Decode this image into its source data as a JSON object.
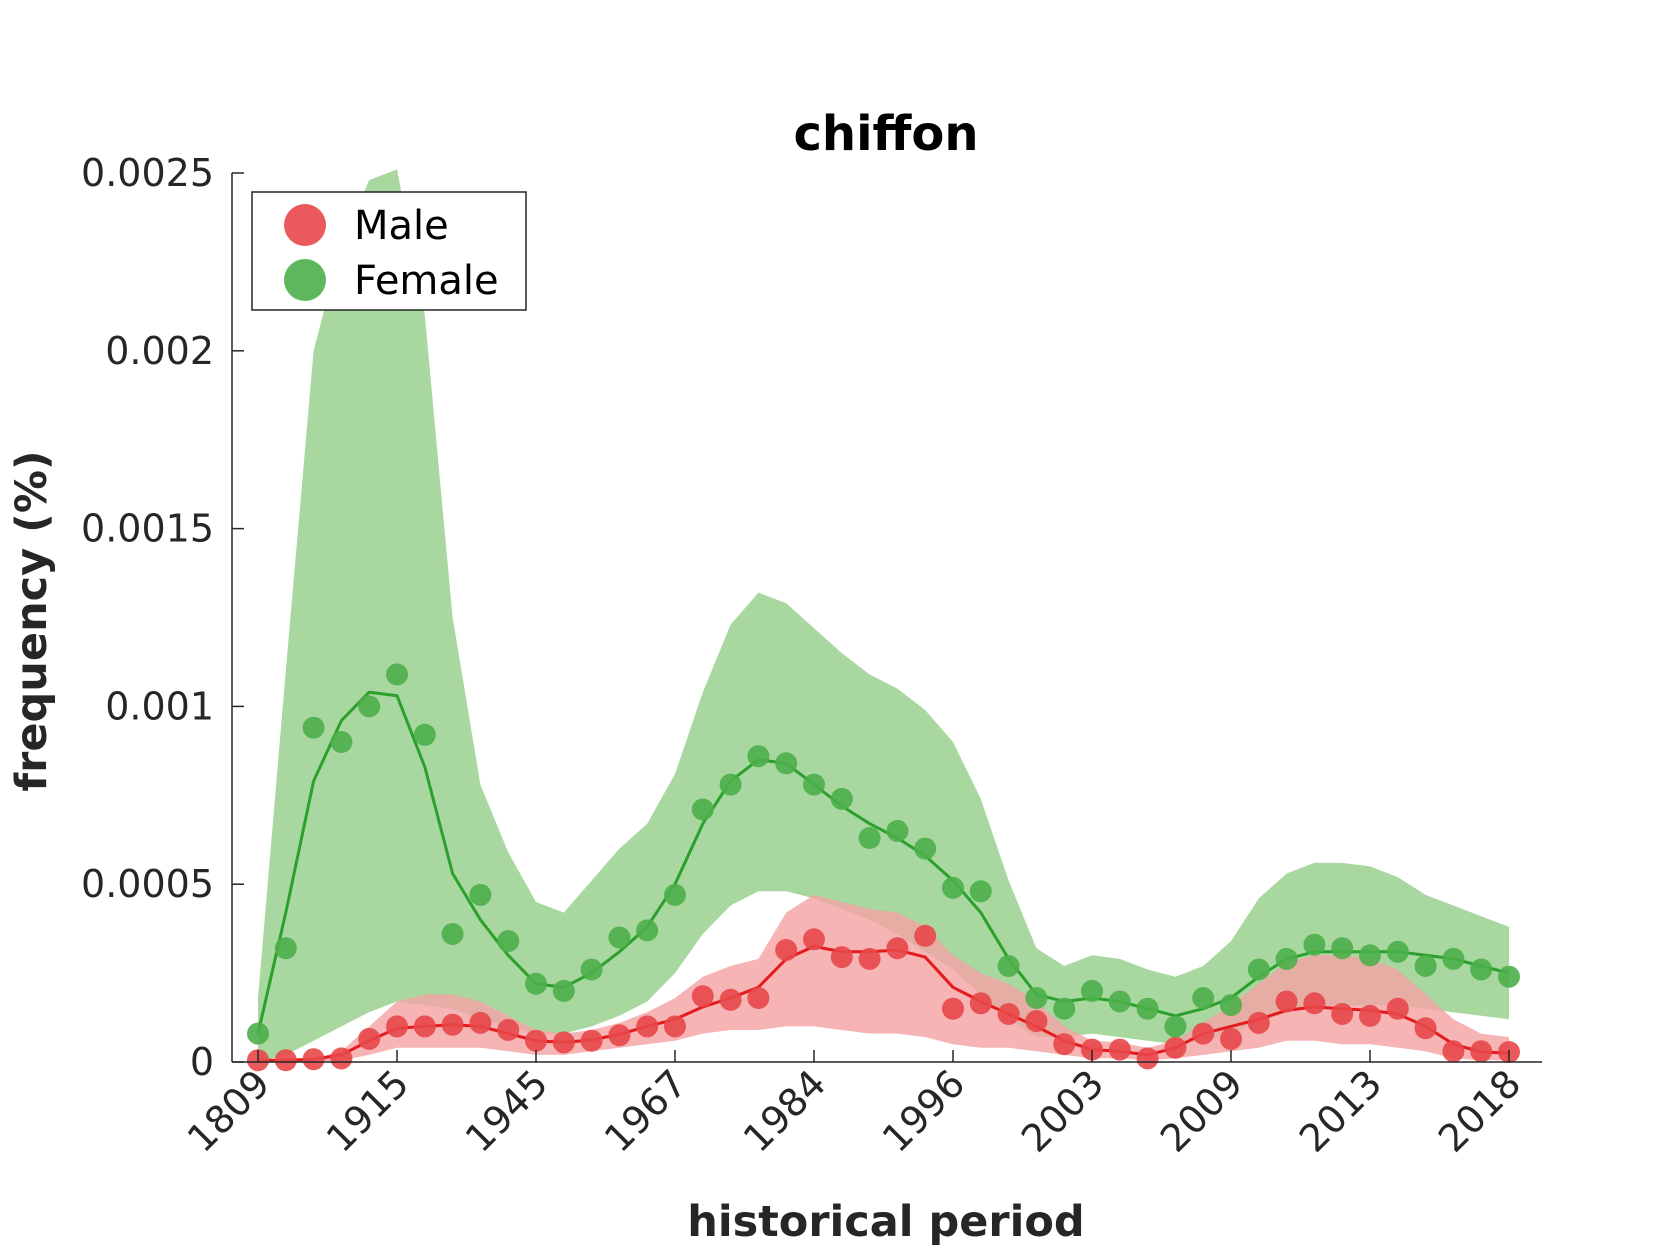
{
  "chart_data": {
    "type": "line",
    "title": "chiffon",
    "xlabel": "historical period",
    "ylabel": "frequency (%)",
    "xtick_labels": [
      "1809",
      "1915",
      "1945",
      "1967",
      "1984",
      "1996",
      "2003",
      "2009",
      "2013",
      "2018"
    ],
    "xtick_index": [
      0,
      5,
      10,
      15,
      20,
      25,
      30,
      35,
      40,
      45
    ],
    "ytick_labels": [
      "0",
      "0.0005",
      "0.001",
      "0.0015",
      "0.002",
      "0.0025"
    ],
    "yticks": [
      0,
      0.0005,
      0.001,
      0.0015,
      0.002,
      0.0025
    ],
    "ylim": [
      0,
      0.0025
    ],
    "grid": false,
    "legend_position": "top-left",
    "series": [
      {
        "name": "Male",
        "color": "#e41a1c",
        "marker_color": "#e8474a",
        "band_color": "#f4a4a5",
        "points": [
          5e-06,
          5e-06,
          8e-06,
          1e-05,
          6.5e-05,
          0.0001,
          0.0001,
          0.000105,
          0.00011,
          9e-05,
          6e-05,
          5.5e-05,
          6e-05,
          7.5e-05,
          0.0001,
          0.0001,
          0.000185,
          0.000175,
          0.00018,
          0.000315,
          0.000345,
          0.000295,
          0.00029,
          0.00032,
          0.000355,
          0.00015,
          0.000165,
          0.000135,
          0.000115,
          5e-05,
          3.5e-05,
          3.5e-05,
          1e-05,
          4e-05,
          8e-05,
          6.5e-05,
          0.00011,
          0.00017,
          0.000165,
          0.000135,
          0.00013,
          0.00015,
          9.5e-05,
          3e-05,
          3e-05,
          2.8e-05
        ],
        "smooth": [
          5e-06,
          5e-06,
          8e-06,
          2e-05,
          6e-05,
          9.5e-05,
          0.0001,
          0.000105,
          0.0001,
          8e-05,
          6e-05,
          5.5e-05,
          6.2e-05,
          7.8e-05,
          0.0001,
          0.00012,
          0.000155,
          0.00018,
          0.00021,
          0.00029,
          0.000325,
          0.00031,
          0.00031,
          0.000315,
          0.000295,
          0.00021,
          0.00017,
          0.000135,
          0.0001,
          6e-05,
          3.5e-05,
          3e-05,
          2e-05,
          4e-05,
          8e-05,
          0.0001,
          0.00012,
          0.000145,
          0.000155,
          0.00015,
          0.000145,
          0.000135,
          0.0001,
          5e-05,
          2.8e-05,
          2.5e-05
        ],
        "band_upper": [
          5e-06,
          5e-06,
          1e-05,
          3e-05,
          0.0001,
          0.00017,
          0.00019,
          0.00019,
          0.00017,
          0.00013,
          9e-05,
          8e-05,
          9e-05,
          0.00011,
          0.00014,
          0.00018,
          0.00024,
          0.00027,
          0.00029,
          0.00042,
          0.00047,
          0.00045,
          0.00043,
          0.00042,
          0.00038,
          0.0003,
          0.00025,
          0.00022,
          0.00017,
          0.0001,
          6e-05,
          5.5e-05,
          4e-05,
          6e-05,
          0.00011,
          0.00016,
          0.00022,
          0.00028,
          0.0003,
          0.0003,
          0.00029,
          0.00026,
          0.00019,
          0.00012,
          8e-05,
          7e-05
        ],
        "band_lower": [
          0,
          0,
          0,
          5e-06,
          2e-05,
          4e-05,
          4e-05,
          4e-05,
          4e-05,
          3e-05,
          2e-05,
          2e-05,
          3e-05,
          4e-05,
          5e-05,
          6e-05,
          8e-05,
          9e-05,
          9e-05,
          0.0001,
          0.0001,
          9e-05,
          8e-05,
          8e-05,
          7e-05,
          5e-05,
          4e-05,
          4e-05,
          3e-05,
          2e-05,
          1e-05,
          1e-05,
          5e-06,
          1e-05,
          2e-05,
          3e-05,
          4e-05,
          6e-05,
          6e-05,
          5e-05,
          5e-05,
          4e-05,
          3e-05,
          1e-05,
          5e-06,
          5e-06
        ]
      },
      {
        "name": "Female",
        "color": "#2ca02c",
        "marker_color": "#4daf4a",
        "band_color": "#a8d8a0",
        "points": [
          8e-05,
          0.00032,
          0.00094,
          0.0009,
          0.001,
          0.00109,
          0.00092,
          0.00036,
          0.00047,
          0.00034,
          0.00022,
          0.0002,
          0.00026,
          0.00035,
          0.00037,
          0.00047,
          0.00071,
          0.00078,
          0.00086,
          0.00084,
          0.00078,
          0.00074,
          0.00063,
          0.00065,
          0.0006,
          0.00049,
          0.00048,
          0.00027,
          0.00018,
          0.00015,
          0.0002,
          0.00017,
          0.00015,
          0.0001,
          0.00018,
          0.00016,
          0.00026,
          0.00029,
          0.00033,
          0.00032,
          0.0003,
          0.00031,
          0.00027,
          0.00029,
          0.00026,
          0.00024
        ],
        "smooth": [
          8e-05,
          0.00042,
          0.00079,
          0.00096,
          0.00104,
          0.00103,
          0.00083,
          0.00053,
          0.0004,
          0.0003,
          0.00022,
          0.00021,
          0.00025,
          0.00031,
          0.00038,
          0.0005,
          0.00067,
          0.00079,
          0.00085,
          0.00084,
          0.00078,
          0.00072,
          0.00067,
          0.00063,
          0.00058,
          0.00051,
          0.00042,
          0.00029,
          0.00019,
          0.00017,
          0.00018,
          0.00017,
          0.00015,
          0.00013,
          0.00015,
          0.00018,
          0.00024,
          0.00029,
          0.00031,
          0.00031,
          0.00031,
          0.00031,
          0.0003,
          0.00029,
          0.00027,
          0.00025
        ],
        "band_upper": [
          0.00018,
          0.0011,
          0.002,
          0.0023,
          0.00248,
          0.00251,
          0.0021,
          0.00125,
          0.00078,
          0.00059,
          0.00045,
          0.00042,
          0.00051,
          0.0006,
          0.00067,
          0.00081,
          0.00104,
          0.00123,
          0.00132,
          0.00129,
          0.00122,
          0.00115,
          0.00109,
          0.00105,
          0.00099,
          0.0009,
          0.00074,
          0.00051,
          0.00032,
          0.00027,
          0.0003,
          0.00029,
          0.00026,
          0.00024,
          0.00027,
          0.00034,
          0.00046,
          0.00053,
          0.00056,
          0.00056,
          0.00055,
          0.00052,
          0.00047,
          0.00044,
          0.00041,
          0.00038
        ],
        "band_lower": [
          0,
          2e-05,
          6e-05,
          0.0001,
          0.00014,
          0.00017,
          0.00016,
          0.00015,
          0.00012,
          0.0001,
          8e-05,
          8e-05,
          0.0001,
          0.00013,
          0.00017,
          0.00025,
          0.00036,
          0.00044,
          0.00048,
          0.00048,
          0.00046,
          0.00043,
          0.0004,
          0.00036,
          0.00031,
          0.00026,
          0.00019,
          0.00012,
          7e-05,
          7e-05,
          8e-05,
          7e-05,
          6e-05,
          5e-05,
          6e-05,
          8e-05,
          0.00011,
          0.00014,
          0.00016,
          0.00016,
          0.00016,
          0.00016,
          0.00015,
          0.00014,
          0.00013,
          0.00012
        ]
      }
    ]
  }
}
